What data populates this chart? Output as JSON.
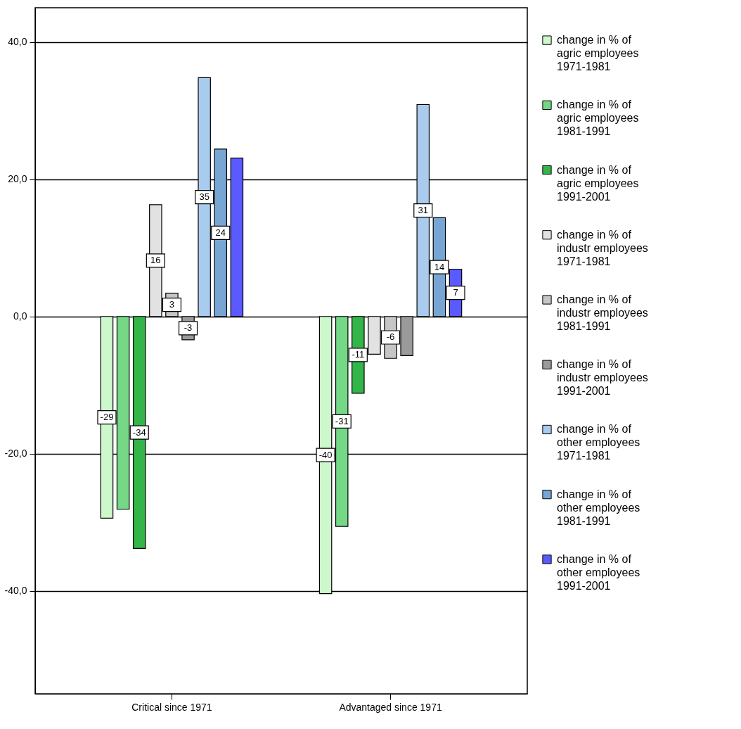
{
  "chart_data": {
    "type": "bar",
    "categories": [
      "Critical since 1971",
      "Advantaged since 1971"
    ],
    "series": [
      {
        "name": "change in % of agric employees 1971-1981",
        "color": "#ccf8cc",
        "values": [
          -29.4,
          -40.4
        ],
        "value_labels": [
          "-29",
          "-40"
        ]
      },
      {
        "name": "change in % of agric employees 1981-1991",
        "color": "#74d886",
        "values": [
          -28.1,
          -30.6
        ],
        "value_labels": [
          null,
          "-31"
        ]
      },
      {
        "name": "change in % of agric employees 1991-2001",
        "color": "#33b54a",
        "values": [
          -33.8,
          -11.2
        ],
        "value_labels": [
          "-34",
          "-11"
        ]
      },
      {
        "name": "change in % of industr employees 1971-1981",
        "color": "#e2e2e2",
        "values": [
          16.3,
          -5.5
        ],
        "value_labels": [
          "16",
          null
        ]
      },
      {
        "name": "change in % of industr employees 1981-1991",
        "color": "#c6c6c6",
        "values": [
          3.4,
          -6.1
        ],
        "value_labels": [
          "3",
          "-6"
        ]
      },
      {
        "name": "change in % of industr employees 1991-2001",
        "color": "#9a9a9a",
        "values": [
          -3.4,
          -5.7
        ],
        "value_labels": [
          "-3",
          null
        ]
      },
      {
        "name": "change in % of other employees 1971-1981",
        "color": "#a9cbee",
        "values": [
          34.8,
          30.9
        ],
        "value_labels": [
          "35",
          "31"
        ]
      },
      {
        "name": "change in % of other employees 1981-1991",
        "color": "#78a6d4",
        "values": [
          24.4,
          14.4
        ],
        "value_labels": [
          "24",
          "14"
        ]
      },
      {
        "name": "change in % of other employees 1991-2001",
        "color": "#5a5aff",
        "values": [
          23.1,
          6.9
        ],
        "value_labels": [
          null,
          "7"
        ]
      }
    ],
    "ylim": [
      -55,
      45
    ],
    "yticks": [
      {
        "value": 40,
        "label": "40,0"
      },
      {
        "value": 20,
        "label": "20,0"
      },
      {
        "value": 0,
        "label": "0,0"
      },
      {
        "value": -20,
        "label": "-20,0"
      },
      {
        "value": -40,
        "label": "-40,0"
      }
    ],
    "grid": "y",
    "legend": "right"
  }
}
